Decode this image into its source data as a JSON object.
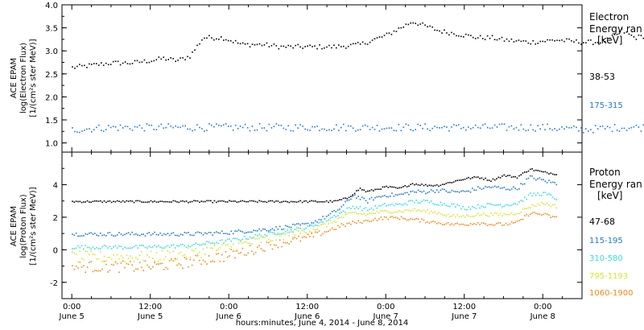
{
  "chart_data": [
    {
      "type": "scatter",
      "panel": "electron",
      "ylabel_lines": [
        "ACE EPAM",
        "log(Electron Flux)",
        "[1/(cm²s ster MeV)]"
      ],
      "legend_title_lines": [
        "Electron",
        "Energy ran",
        "[keV]"
      ],
      "ylim": [
        0.8,
        4.0
      ],
      "yticks": [
        1.0,
        1.5,
        2.0,
        2.5,
        3.0,
        3.5,
        4.0
      ],
      "ytick_labels": [
        "1.0",
        "1.5",
        "2.0",
        "2.5",
        "3.0",
        "3.5",
        "4.0"
      ],
      "x_hours_since_june4_midnight": [
        24,
        120
      ],
      "series": [
        {
          "name": "38-53",
          "color": "#000000",
          "x": [
            24,
            27,
            30,
            33,
            36,
            38,
            40,
            42,
            44,
            47,
            50,
            53,
            56,
            60,
            64,
            68,
            70,
            72,
            74,
            76,
            78,
            80,
            82,
            84,
            86,
            88,
            90,
            94,
            98,
            102,
            104,
            106,
            108,
            110,
            112,
            114,
            116,
            118,
            119
          ],
          "y": [
            2.65,
            2.7,
            2.75,
            2.75,
            2.8,
            2.85,
            2.8,
            2.9,
            3.3,
            3.3,
            3.15,
            3.15,
            3.1,
            3.1,
            3.1,
            3.15,
            3.25,
            3.35,
            3.5,
            3.65,
            3.55,
            3.45,
            3.4,
            3.35,
            3.3,
            3.3,
            3.25,
            3.2,
            3.25,
            3.2,
            3.2,
            3.25,
            3.45,
            3.3,
            3.35,
            3.4,
            3.5,
            3.6,
            3.7
          ]
        },
        {
          "name": "175-315",
          "color": "#1f78d1",
          "x": [
            24,
            30,
            36,
            42,
            48,
            54,
            60,
            66,
            72,
            78,
            84,
            90,
            96,
            102,
            108,
            114,
            119
          ],
          "y": [
            1.3,
            1.35,
            1.35,
            1.35,
            1.35,
            1.35,
            1.35,
            1.35,
            1.35,
            1.35,
            1.35,
            1.35,
            1.35,
            1.3,
            1.35,
            1.35,
            1.3
          ]
        }
      ]
    },
    {
      "type": "scatter",
      "panel": "proton",
      "ylabel_lines": [
        "ACE EPAM",
        "log(Proton Flux)",
        "[1/(cm²s ster MeV)]"
      ],
      "legend_title_lines": [
        "Proton",
        "Energy ran",
        "[keV]"
      ],
      "ylim": [
        -3.0,
        6.0
      ],
      "yticks": [
        -2,
        0,
        2,
        4
      ],
      "ytick_labels": [
        "-2",
        "0",
        "2",
        "4"
      ],
      "xlabel": "hours:minutes, June  4, 2014 - June  8, 2014",
      "x_ticks_hours_since_june4_midnight": [
        24,
        36,
        48,
        60,
        72,
        84,
        96,
        108,
        120
      ],
      "x_tick_labels": [
        [
          "0:00",
          "June 5"
        ],
        [
          "12:00",
          "June 5"
        ],
        [
          "0:00",
          "June 6"
        ],
        [
          "12:00",
          "June 6"
        ],
        [
          "0:00",
          "June 7"
        ],
        [
          "12:00",
          "June 7"
        ],
        [
          "0:00",
          "June 8"
        ]
      ],
      "x_tick_label_hours": [
        24,
        36,
        48,
        60,
        72,
        84,
        96
      ],
      "xlim": [
        22.5,
        102
      ],
      "series": [
        {
          "name": "47-68",
          "color": "#000000",
          "x": [
            24,
            30,
            36,
            42,
            48,
            54,
            60,
            64,
            66,
            68,
            69,
            70,
            72,
            74,
            76,
            78,
            80,
            82,
            84,
            86,
            88,
            90,
            92,
            94,
            96,
            98
          ],
          "y": [
            3.0,
            3.0,
            3.0,
            3.0,
            3.0,
            3.0,
            3.0,
            3.0,
            3.2,
            3.8,
            3.6,
            3.7,
            3.9,
            3.8,
            4.1,
            4.0,
            4.0,
            4.2,
            4.4,
            4.5,
            4.3,
            4.6,
            4.5,
            5.0,
            4.8,
            4.7
          ]
        },
        {
          "name": "115-195",
          "color": "#1f78d1",
          "x": [
            24,
            30,
            36,
            42,
            48,
            54,
            60,
            63,
            65,
            67,
            69,
            70,
            72,
            74,
            76,
            78,
            80,
            82,
            84,
            86,
            88,
            90,
            92,
            94,
            96,
            98
          ],
          "y": [
            1.0,
            1.0,
            1.0,
            1.0,
            1.1,
            1.3,
            1.6,
            2.1,
            2.6,
            3.4,
            3.0,
            3.2,
            3.4,
            3.4,
            3.6,
            3.6,
            3.7,
            3.6,
            3.6,
            3.8,
            3.9,
            3.8,
            3.8,
            4.5,
            4.3,
            4.1
          ]
        },
        {
          "name": "310-580",
          "color": "#33dddd",
          "x": [
            24,
            30,
            36,
            42,
            48,
            54,
            60,
            63,
            65,
            67,
            69,
            70,
            72,
            74,
            76,
            78,
            80,
            82,
            84,
            86,
            88,
            90,
            92,
            94,
            96,
            98
          ],
          "y": [
            0.2,
            0.2,
            0.2,
            0.3,
            0.6,
            1.0,
            1.4,
            1.9,
            2.3,
            2.7,
            2.5,
            2.6,
            2.8,
            2.8,
            3.0,
            3.0,
            2.9,
            2.8,
            2.6,
            2.7,
            2.8,
            2.8,
            2.9,
            3.4,
            3.5,
            3.2
          ]
        },
        {
          "name": "795-1193",
          "color": "#d6e62b",
          "x": [
            24,
            30,
            36,
            42,
            48,
            54,
            60,
            63,
            65,
            67,
            69,
            70,
            72,
            74,
            76,
            78,
            80,
            82,
            84,
            86,
            88,
            90,
            92,
            94,
            96,
            98
          ],
          "y": [
            -0.4,
            -0.4,
            -0.4,
            -0.2,
            0.2,
            0.7,
            1.2,
            1.6,
            2.0,
            2.3,
            2.2,
            2.3,
            2.4,
            2.4,
            2.5,
            2.4,
            2.3,
            2.1,
            2.1,
            2.2,
            2.2,
            2.2,
            2.3,
            2.7,
            2.9,
            2.7
          ]
        },
        {
          "name": "1060-1900",
          "color": "#ee8a1c",
          "x": [
            24,
            30,
            36,
            42,
            48,
            54,
            60,
            63,
            65,
            67,
            69,
            70,
            72,
            74,
            76,
            78,
            80,
            82,
            84,
            86,
            88,
            90,
            92,
            94,
            96,
            98
          ],
          "y": [
            -1.0,
            -1.0,
            -1.0,
            -0.7,
            -0.3,
            0.3,
            0.8,
            1.2,
            1.5,
            1.7,
            1.8,
            1.9,
            2.0,
            2.0,
            1.9,
            1.8,
            1.7,
            1.6,
            1.6,
            1.7,
            1.6,
            1.6,
            1.7,
            2.3,
            2.2,
            2.0
          ]
        }
      ]
    }
  ]
}
